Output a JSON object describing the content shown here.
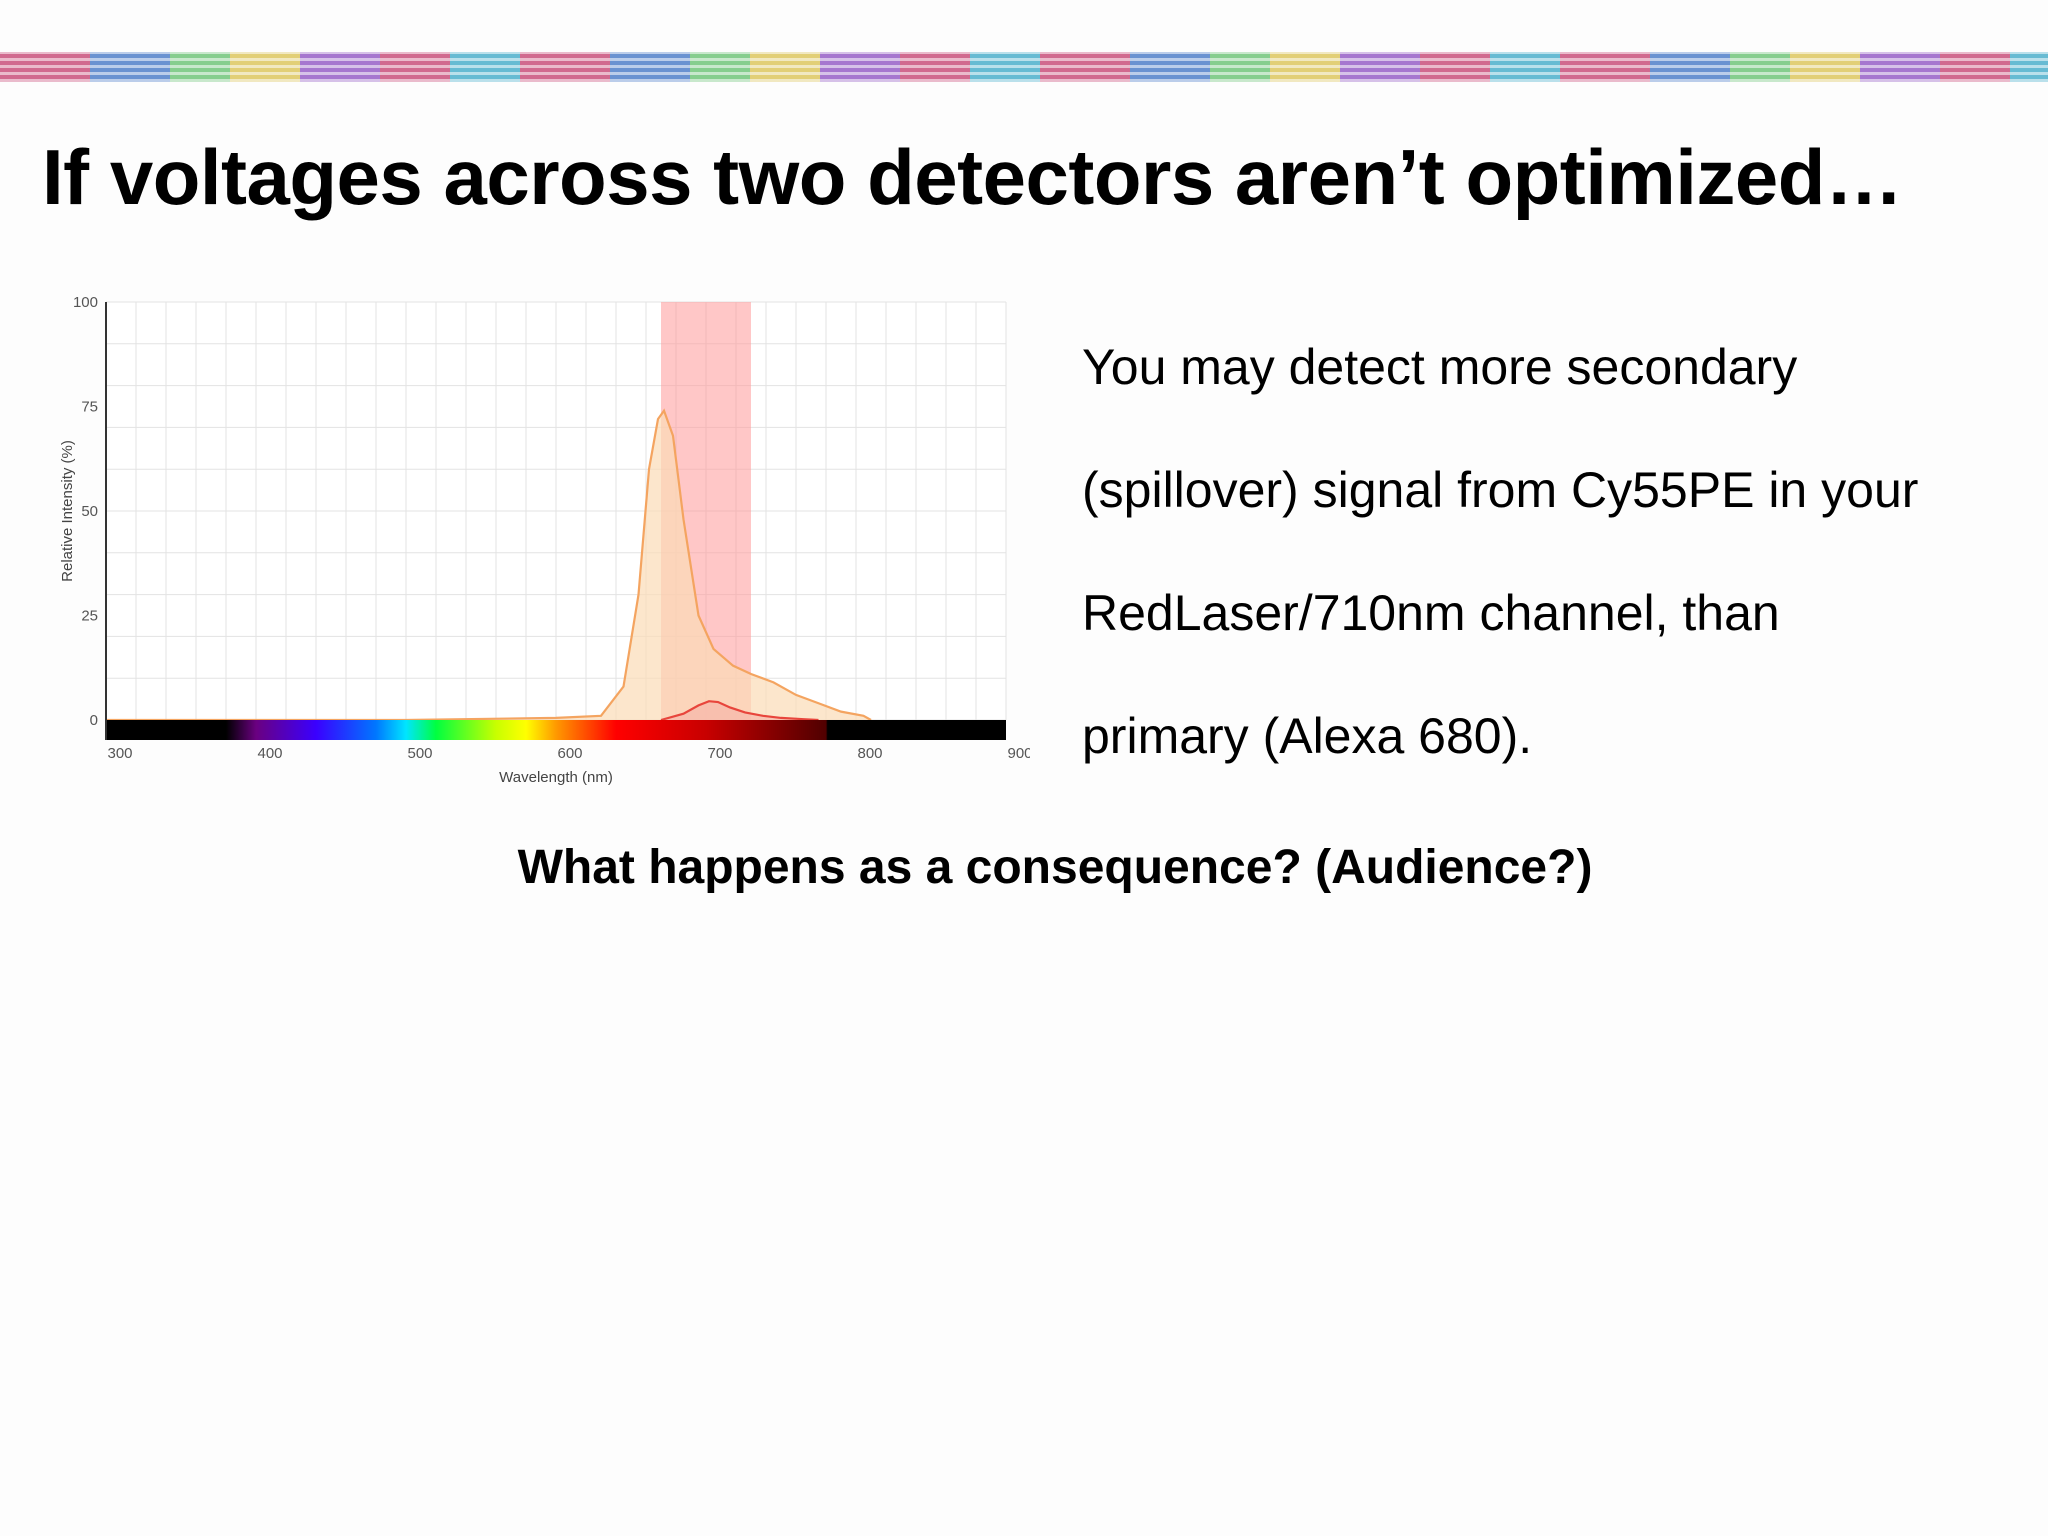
{
  "slide": {
    "title": "If voltages across two detectors aren’t optimized…",
    "body_lines": [
      "You may detect more secondary",
      "(spillover) signal from Cy55PE in your",
      "RedLaser/710nm channel, than",
      "primary (Alexa 680)."
    ],
    "question": "What happens as a consequence? (Audience?)"
  },
  "chart_data": {
    "type": "area",
    "xlabel": "Wavelength (nm)",
    "ylabel": "Relative Intensity (%)",
    "xlim": [
      300,
      900
    ],
    "ylim": [
      0,
      100
    ],
    "x_ticks": [
      300,
      400,
      500,
      600,
      700,
      800,
      900
    ],
    "y_ticks": [
      0,
      25,
      50,
      75,
      100
    ],
    "grid": true,
    "detection_band": {
      "from": 670,
      "to": 730,
      "color": "#ff9999"
    },
    "series": [
      {
        "color": "#f4a460",
        "fill": "#fbdcb7",
        "x": [
          300,
          500,
          600,
          630,
          645,
          655,
          662,
          668,
          672,
          678,
          685,
          695,
          705,
          718,
          730,
          745,
          760,
          775,
          790,
          805,
          810
        ],
        "y": [
          0,
          0,
          0.5,
          1,
          8,
          30,
          60,
          72,
          74,
          68,
          48,
          25,
          17,
          13,
          11,
          9,
          6,
          4,
          2,
          1,
          0
        ]
      },
      {
        "color": "#e8453c",
        "fill": "#f7b5a8",
        "x": [
          670,
          685,
          695,
          702,
          708,
          716,
          726,
          738,
          750,
          765,
          775
        ],
        "y": [
          0,
          1.5,
          3.5,
          4.5,
          4.3,
          3,
          1.8,
          1,
          0.5,
          0.2,
          0
        ]
      }
    ]
  }
}
